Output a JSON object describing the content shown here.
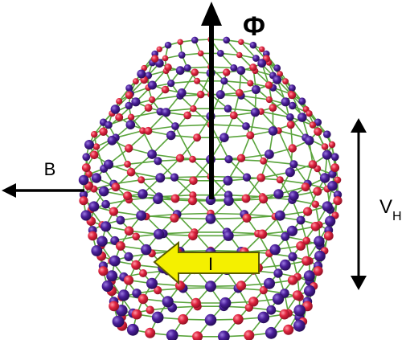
{
  "labels": {
    "flux": "Φ",
    "field": "B",
    "hall_voltage": "V",
    "hall_voltage_subscript": "H",
    "current": "I"
  },
  "colors": {
    "atom_red": "#e0243f",
    "atom_purple": "#4b1f9a",
    "bond": "#5aa43c",
    "arrow": "#000000",
    "current_arrow_fill": "#f4f000",
    "current_arrow_stroke": "#5a5a00"
  }
}
